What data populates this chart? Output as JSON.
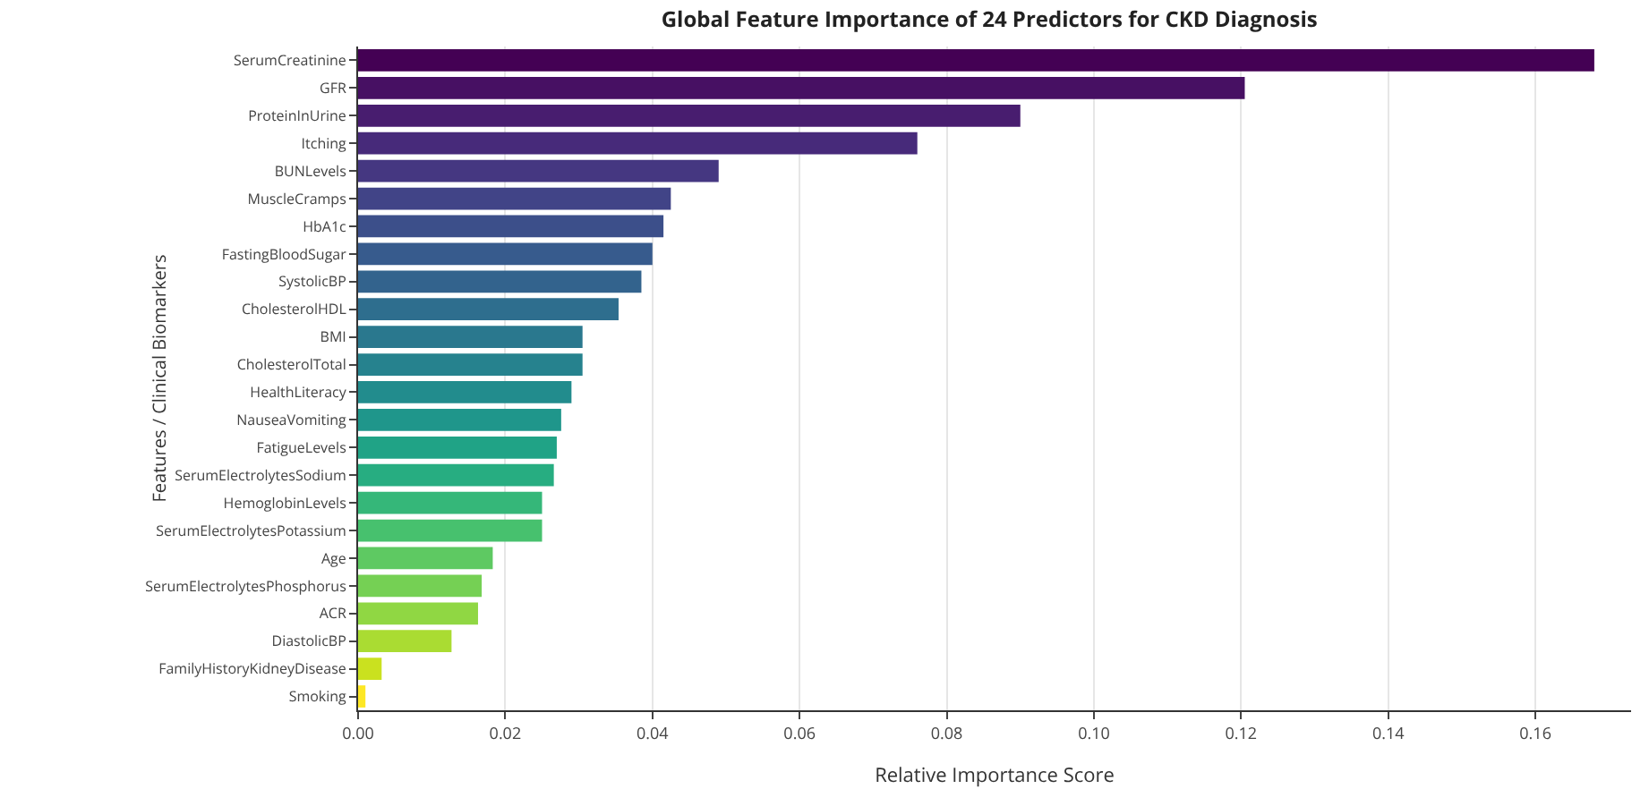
{
  "chart_data": {
    "type": "bar",
    "orientation": "horizontal",
    "title": "Global Feature Importance of 24 Predictors for CKD Diagnosis",
    "xlabel": "Relative Importance Score",
    "ylabel": "Features / Clinical Biomarkers",
    "categories": [
      "SerumCreatinine",
      "GFR",
      "ProteinInUrine",
      "Itching",
      "BUNLevels",
      "MuscleCramps",
      "HbA1c",
      "FastingBloodSugar",
      "SystolicBP",
      "CholesterolHDL",
      "BMI",
      "CholesterolTotal",
      "HealthLiteracy",
      "NauseaVomiting",
      "FatigueLevels",
      "SerumElectrolytesSodium",
      "HemoglobinLevels",
      "SerumElectrolytesPotassium",
      "Age",
      "SerumElectrolytesPhosphorus",
      "ACR",
      "DiastolicBP",
      "FamilyHistoryKidneyDisease",
      "Smoking"
    ],
    "values": [
      0.168,
      0.1205,
      0.09,
      0.076,
      0.049,
      0.0425,
      0.0415,
      0.04,
      0.0385,
      0.0354,
      0.0305,
      0.0305,
      0.029,
      0.0276,
      0.027,
      0.0266,
      0.025,
      0.025,
      0.0183,
      0.0168,
      0.0163,
      0.0127,
      0.0032,
      0.001
    ],
    "colors": [
      "#440154",
      "#471063",
      "#481d6f",
      "#472a7a",
      "#453781",
      "#414487",
      "#3c4f8a",
      "#375b8d",
      "#33638d",
      "#2e6e8e",
      "#2a788e",
      "#26828e",
      "#228c8d",
      "#1f968b",
      "#20a386",
      "#27ad81",
      "#35b779",
      "#47c16e",
      "#5ec962",
      "#75d054",
      "#90d743",
      "#aadc32",
      "#cae11f",
      "#fde725"
    ],
    "xlim": [
      0,
      0.173
    ],
    "xticks": [
      {
        "value": 0,
        "label": "0.00"
      },
      {
        "value": 0.02,
        "label": "0.02"
      },
      {
        "value": 0.04,
        "label": "0.04"
      },
      {
        "value": 0.06,
        "label": "0.06"
      },
      {
        "value": 0.08,
        "label": "0.08"
      },
      {
        "value": 0.1,
        "label": "0.10"
      },
      {
        "value": 0.12,
        "label": "0.12"
      },
      {
        "value": 0.14,
        "label": "0.14"
      },
      {
        "value": 0.16,
        "label": "0.16"
      }
    ],
    "grid": "x"
  }
}
